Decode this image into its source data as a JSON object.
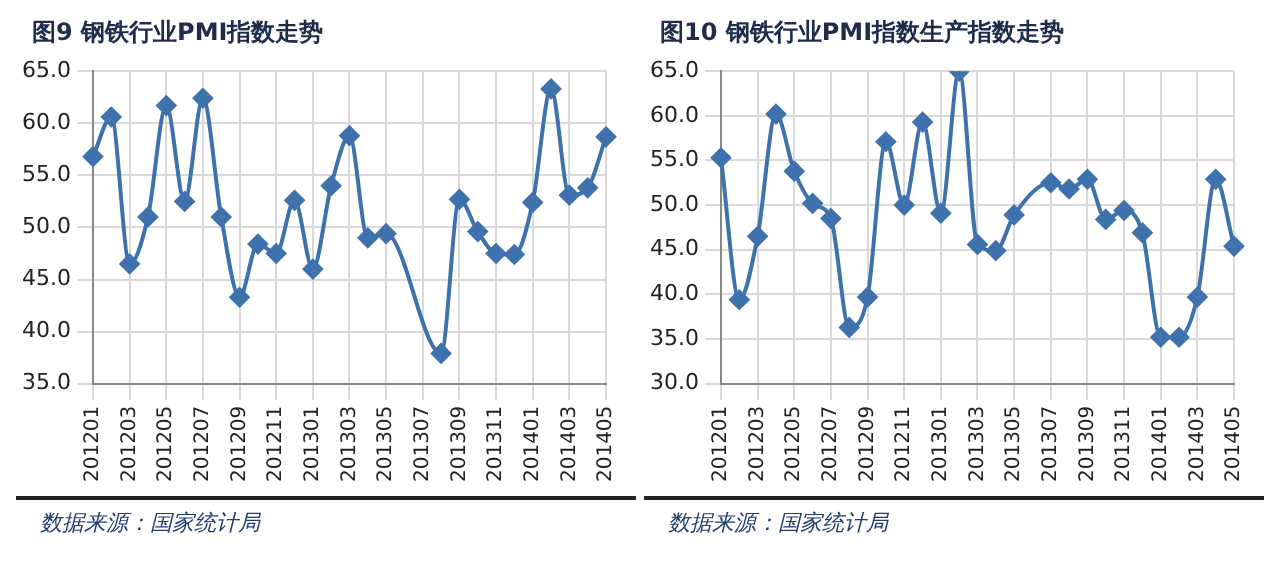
{
  "chart_data": [
    {
      "type": "line",
      "title": "图9 钢铁行业PMI指数走势",
      "categories": [
        "201201",
        null,
        "201203",
        null,
        "201205",
        null,
        "201207",
        null,
        "201209",
        null,
        "201211",
        null,
        "201301",
        null,
        "201303",
        null,
        "201305",
        null,
        "201307",
        null,
        "201309",
        null,
        "201311",
        null,
        "201401",
        null,
        "201403",
        null,
        "201405"
      ],
      "series": [
        {
          "color": "#3f72ad",
          "values": [
            56.8,
            60.6,
            46.5,
            51.0,
            61.7,
            52.5,
            62.4,
            51.0,
            43.3,
            48.4,
            47.5,
            52.6,
            46.0,
            54.0,
            58.8,
            49.0,
            49.4,
            null,
            null,
            37.9,
            52.7,
            49.6,
            47.5,
            47.4,
            52.4,
            63.3,
            53.1,
            53.8,
            58.7
          ]
        }
      ],
      "ylim": [
        35,
        65
      ],
      "yticks": [
        {
          "value": 35,
          "label": "35.0"
        },
        {
          "value": 40,
          "label": "40.0"
        },
        {
          "value": 45,
          "label": "45.0"
        },
        {
          "value": 50,
          "label": "50.0"
        },
        {
          "value": 55,
          "label": "55.0"
        },
        {
          "value": 60,
          "label": "60.0"
        },
        {
          "value": 65,
          "label": "65.0"
        }
      ],
      "grid": true,
      "legend": false,
      "marker": "diamond",
      "line_style": "solid",
      "annotations": [
        "数据来源：国家统计局"
      ]
    },
    {
      "type": "line",
      "title": "图10 钢铁行业PMI指数生产指数走势",
      "categories": [
        "201201",
        null,
        "201203",
        null,
        "201205",
        null,
        "201207",
        null,
        "201209",
        null,
        "201211",
        null,
        "201301",
        null,
        "201303",
        null,
        "201305",
        null,
        "201307",
        null,
        "201309",
        null,
        "201311",
        null,
        "201401",
        null,
        "201403",
        null,
        "201405"
      ],
      "series": [
        {
          "color": "#3f72ad",
          "values": [
            55.3,
            39.4,
            46.5,
            60.2,
            53.8,
            50.2,
            48.5,
            36.3,
            39.7,
            57.1,
            50.0,
            59.3,
            49.1,
            65.0,
            45.6,
            44.9,
            48.9,
            null,
            52.5,
            51.8,
            52.9,
            48.4,
            49.4,
            46.9,
            35.2,
            35.2,
            39.7,
            52.9,
            45.4
          ]
        }
      ],
      "ylim": [
        30,
        65
      ],
      "yticks": [
        {
          "value": 30,
          "label": "30.0"
        },
        {
          "value": 35,
          "label": "35.0"
        },
        {
          "value": 40,
          "label": "40.0"
        },
        {
          "value": 45,
          "label": "45.0"
        },
        {
          "value": 50,
          "label": "50.0"
        },
        {
          "value": 55,
          "label": "55.0"
        },
        {
          "value": 60,
          "label": "60.0"
        },
        {
          "value": 65,
          "label": "65.0"
        }
      ],
      "grid": true,
      "legend": false,
      "marker": "diamond",
      "line_style": "solid",
      "annotations": [
        "数据来源：国家统计局"
      ]
    }
  ]
}
